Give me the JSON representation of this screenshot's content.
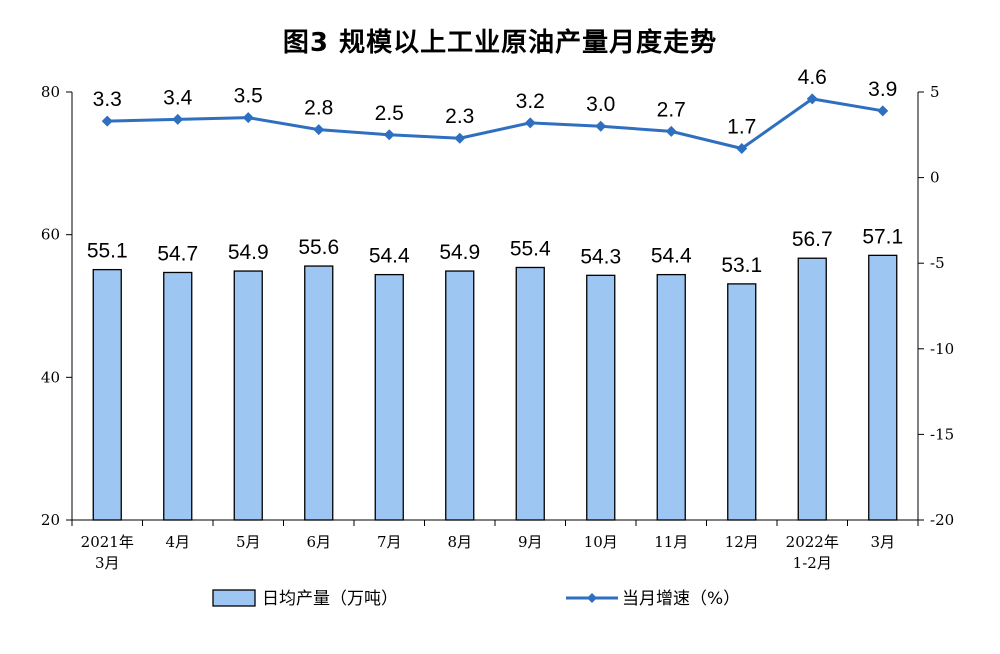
{
  "chart_data": {
    "type": "bar+line",
    "title": "图3  规模以上工业原油产量月度走势",
    "categories": [
      [
        "2021年",
        "3月"
      ],
      [
        "4月"
      ],
      [
        "5月"
      ],
      [
        "6月"
      ],
      [
        "7月"
      ],
      [
        "8月"
      ],
      [
        "9月"
      ],
      [
        "10月"
      ],
      [
        "11月"
      ],
      [
        "12月"
      ],
      [
        "2022年",
        "1-2月"
      ],
      [
        "3月"
      ]
    ],
    "series": [
      {
        "name": "日均产量（万吨）",
        "type": "bar",
        "axis": "left",
        "values": [
          55.1,
          54.7,
          54.9,
          55.6,
          54.4,
          54.9,
          55.4,
          54.3,
          54.4,
          53.1,
          56.7,
          57.1
        ],
        "labels": [
          "55.1",
          "54.7",
          "54.9",
          "55.6",
          "54.4",
          "54.9",
          "55.4",
          "54.3",
          "54.4",
          "53.1",
          "56.7",
          "57.1"
        ],
        "color": "#9dc6f2",
        "edge_color": "#000000"
      },
      {
        "name": "当月增速（%）",
        "type": "line",
        "axis": "right",
        "values": [
          3.3,
          3.4,
          3.5,
          2.8,
          2.5,
          2.3,
          3.2,
          3.0,
          2.7,
          1.7,
          4.6,
          3.9
        ],
        "labels": [
          "3.3",
          "3.4",
          "3.5",
          "2.8",
          "2.5",
          "2.3",
          "3.2",
          "3.0",
          "2.7",
          "1.7",
          "4.6",
          "3.9"
        ],
        "color": "#2f6fc0"
      }
    ],
    "y_left": {
      "min": 20,
      "max": 80,
      "ticks": [
        "20",
        "40",
        "60",
        "80"
      ]
    },
    "y_right": {
      "min": -20,
      "max": 5,
      "ticks": [
        "5",
        "0",
        "-5",
        "-10",
        "-15",
        "-20"
      ]
    },
    "grid": false,
    "legend": "bottom"
  }
}
